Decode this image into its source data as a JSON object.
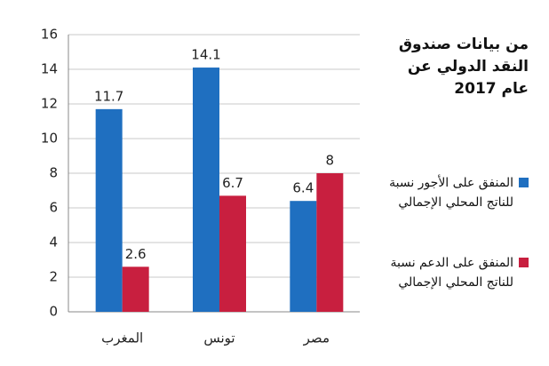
{
  "chart_data": {
    "type": "bar",
    "title": "من بيانات صندوق النقد الدولي عن عام 2017",
    "categories": [
      "المغرب",
      "تونس",
      "مصر"
    ],
    "series": [
      {
        "name": "المنفق على الأجور نسبة للناتج المحلي الإجمالي",
        "color": "#1f6fc0",
        "values": [
          11.7,
          14.1,
          6.4
        ]
      },
      {
        "name": "المنفق على الدعم نسبة للناتج المحلي الإجمالي",
        "color": "#c81f3f",
        "values": [
          2.6,
          6.7,
          8
        ]
      }
    ],
    "ylim": [
      0,
      16
    ],
    "yticks": [
      0,
      2,
      4,
      6,
      8,
      10,
      12,
      14,
      16
    ],
    "grid": true
  }
}
